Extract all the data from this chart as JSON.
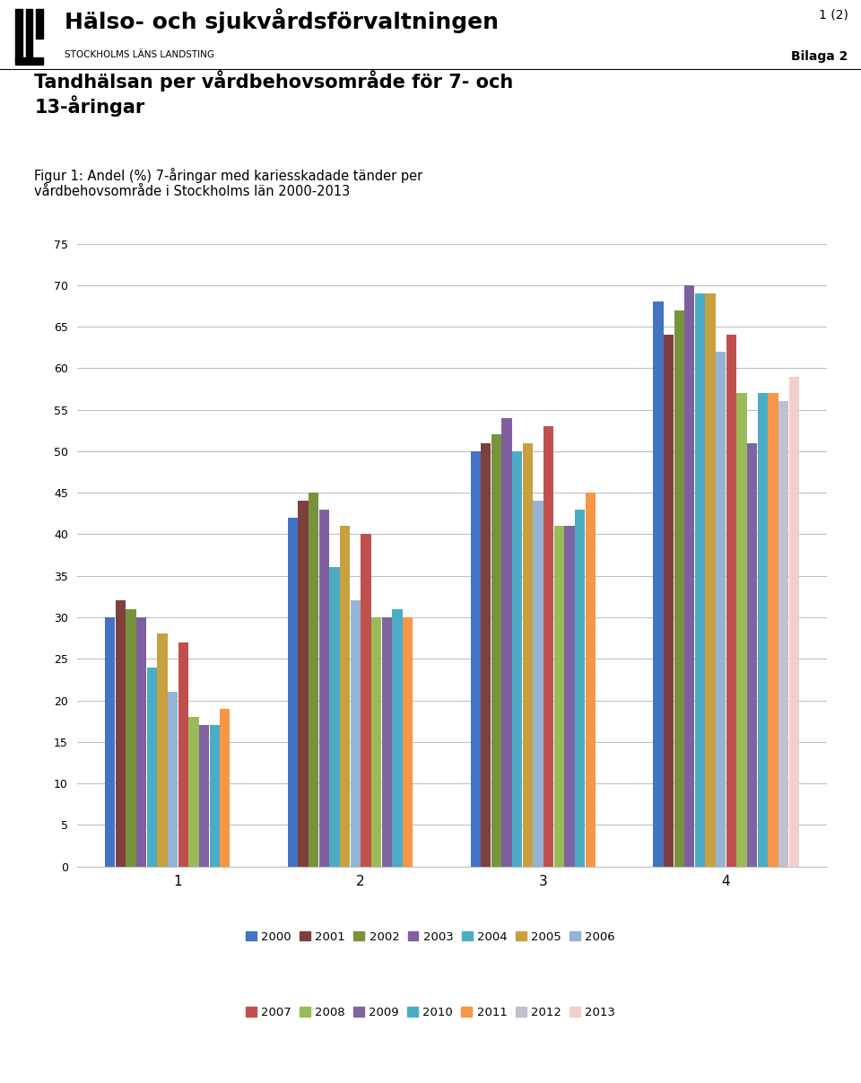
{
  "title_main": "Tandhälsan per vårdbehovsområde för 7- och\n13-åringar",
  "subtitle": "Figur 1: Andel (%) 7-åringar med kariesskadade tänder per\nvårdbehovsområde i Stockholms län 2000-2013",
  "header_org": "Hälso- och sjukvårdsförvaltningen",
  "header_sub": "STOCKHOLMS LÄNS LANDSTING",
  "page_number": "1 (2)",
  "bilaga": "Bilaga 2",
  "categories": [
    1,
    2,
    3,
    4
  ],
  "years": [
    2000,
    2001,
    2002,
    2003,
    2004,
    2005,
    2006,
    2007,
    2008,
    2009,
    2010,
    2011,
    2012,
    2013
  ],
  "colors": [
    "#4472C4",
    "#7F3F3F",
    "#77933C",
    "#7F5FA0",
    "#4BACC6",
    "#C8A040",
    "#95B3D7",
    "#C0504D",
    "#9BBB59",
    "#8064A2",
    "#4BACC6",
    "#F79646",
    "#C0C0D0",
    "#F2CECC"
  ],
  "legend_colors_row1": [
    "#4472C4",
    "#7F3F3F",
    "#77933C",
    "#7F5FA0",
    "#4BACC6",
    "#C8A040",
    "#95B3D7"
  ],
  "legend_colors_row2": [
    "#C0504D",
    "#9BBB59",
    "#8064A2",
    "#4BACC6",
    "#F79646",
    "#C0C0D0",
    "#F2CECC"
  ],
  "legend_labels_row1": [
    "2000",
    "2001",
    "2002",
    "2003",
    "2004",
    "2005",
    "2006"
  ],
  "legend_labels_row2": [
    "2007",
    "2008",
    "2009",
    "2010",
    "2011",
    "2012",
    "2013"
  ],
  "data": {
    "1": [
      30,
      32,
      31,
      30,
      24,
      28,
      21,
      27,
      18,
      17,
      17,
      19,
      null,
      null
    ],
    "2": [
      42,
      44,
      45,
      43,
      36,
      41,
      32,
      40,
      30,
      30,
      31,
      30,
      null,
      null
    ],
    "3": [
      50,
      51,
      52,
      54,
      50,
      51,
      44,
      53,
      41,
      41,
      43,
      45,
      null,
      null
    ],
    "4": [
      68,
      64,
      67,
      70,
      69,
      69,
      62,
      64,
      57,
      51,
      57,
      57,
      56,
      59
    ]
  },
  "ylim": [
    0,
    75
  ],
  "yticks": [
    0,
    5,
    10,
    15,
    20,
    25,
    30,
    35,
    40,
    45,
    50,
    55,
    60,
    65,
    70,
    75
  ],
  "background_color": "#ffffff",
  "grid_color": "#C0C0C0"
}
